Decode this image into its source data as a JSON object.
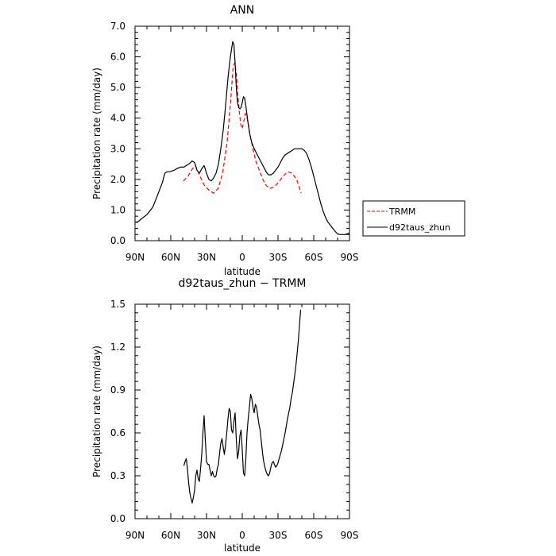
{
  "chart_data": [
    {
      "type": "line",
      "title": "ANN",
      "xlabel": "latitude",
      "ylabel": "Precipitation rate (mm/day)",
      "xlim": [
        90,
        -90
      ],
      "ylim": [
        0,
        7
      ],
      "xticks": [
        {
          "value": 90,
          "label": "90N"
        },
        {
          "value": 60,
          "label": "60N"
        },
        {
          "value": 30,
          "label": "30N"
        },
        {
          "value": 0,
          "label": "0"
        },
        {
          "value": -30,
          "label": "30S"
        },
        {
          "value": -60,
          "label": "60S"
        },
        {
          "value": -90,
          "label": "90S"
        }
      ],
      "yticks": [
        {
          "value": 0,
          "label": "0.0"
        },
        {
          "value": 1,
          "label": "1.0"
        },
        {
          "value": 2,
          "label": "2.0"
        },
        {
          "value": 3,
          "label": "3.0"
        },
        {
          "value": 4,
          "label": "4.0"
        },
        {
          "value": 5,
          "label": "5.0"
        },
        {
          "value": 6,
          "label": "6.0"
        },
        {
          "value": 7,
          "label": "7.0"
        }
      ],
      "legend": "right",
      "series": [
        {
          "name": "TRMM",
          "color": "#ff0000",
          "dash": true,
          "x": [
            49.4,
            45.6,
            41.8,
            39.3,
            35.5,
            31.7,
            27.9,
            24.1,
            20.3,
            16.5,
            12.7,
            10.1,
            7.6,
            6.3,
            5.1,
            3.8,
            2.5,
            1.3,
            0,
            -1.3,
            -2.5,
            -3.8,
            -5.1,
            -6.3,
            -8.9,
            -11.4,
            -15.2,
            -19,
            -22.8,
            -26.6,
            -30.4,
            -34.2,
            -38,
            -41.8,
            -45.6,
            -49.4
          ],
          "y": [
            1.95,
            2.1,
            2.35,
            2.45,
            2.1,
            1.8,
            1.65,
            1.55,
            1.7,
            2.2,
            3.2,
            4.4,
            5.7,
            5.8,
            5.5,
            4.8,
            4.2,
            3.8,
            3.65,
            3.9,
            4.15,
            4.05,
            3.8,
            3.5,
            3.0,
            2.6,
            2.2,
            1.85,
            1.7,
            1.75,
            1.9,
            2.1,
            2.25,
            2.2,
            2.0,
            1.55
          ]
        },
        {
          "name": "d92taus_zhun",
          "color": "#000000",
          "dash": false,
          "x": [
            90,
            87.5,
            85,
            80,
            75,
            70,
            67,
            65,
            63,
            61,
            57,
            55,
            52,
            49,
            45,
            42,
            40,
            38,
            36,
            34,
            32,
            30,
            28,
            26,
            24,
            22,
            20,
            18,
            16,
            14,
            12,
            10,
            8,
            7,
            6,
            5,
            4,
            3,
            2,
            1,
            0,
            -1,
            -2,
            -3,
            -4,
            -5,
            -6,
            -7,
            -8,
            -10,
            -12,
            -14,
            -16,
            -18,
            -20,
            -22,
            -24,
            -26,
            -28,
            -30,
            -32,
            -34,
            -36,
            -38,
            -40,
            -42,
            -44,
            -46,
            -48,
            -50,
            -52,
            -54,
            -56,
            -58,
            -60,
            -62,
            -64,
            -66,
            -68,
            -70,
            -72,
            -75,
            -78,
            -80,
            -82,
            -84,
            -86,
            -88,
            -90
          ],
          "y": [
            0.6,
            0.62,
            0.7,
            0.85,
            1.1,
            1.6,
            1.9,
            2.2,
            2.25,
            2.25,
            2.3,
            2.35,
            2.4,
            2.4,
            2.5,
            2.6,
            2.55,
            2.3,
            2.2,
            2.35,
            2.45,
            2.2,
            2.0,
            1.95,
            2.05,
            2.2,
            2.5,
            3.0,
            3.6,
            4.4,
            5.3,
            6.0,
            6.5,
            6.4,
            5.8,
            5.0,
            4.5,
            4.35,
            4.3,
            4.35,
            4.5,
            4.7,
            4.65,
            4.4,
            4.1,
            3.8,
            3.55,
            3.35,
            3.2,
            3.0,
            2.85,
            2.7,
            2.55,
            2.4,
            2.25,
            2.15,
            2.15,
            2.2,
            2.3,
            2.4,
            2.55,
            2.7,
            2.8,
            2.85,
            2.9,
            2.95,
            3.0,
            3.0,
            3.0,
            3.0,
            2.95,
            2.85,
            2.65,
            2.4,
            2.1,
            1.8,
            1.5,
            1.2,
            0.95,
            0.75,
            0.6,
            0.45,
            0.3,
            0.22,
            0.2,
            0.2,
            0.2,
            0.22,
            0.25
          ]
        }
      ]
    },
    {
      "type": "line",
      "title": "d92taus_zhun − TRMM",
      "xlabel": "latitude",
      "ylabel": "Precipitation rate (mm/day)",
      "xlim": [
        90,
        -90
      ],
      "ylim": [
        0,
        1.5
      ],
      "xticks": [
        {
          "value": 90,
          "label": "90N"
        },
        {
          "value": 60,
          "label": "60N"
        },
        {
          "value": 30,
          "label": "30N"
        },
        {
          "value": 0,
          "label": "0"
        },
        {
          "value": -30,
          "label": "30S"
        },
        {
          "value": -60,
          "label": "60S"
        },
        {
          "value": -90,
          "label": "90S"
        }
      ],
      "yticks": [
        {
          "value": 0,
          "label": "0.0"
        },
        {
          "value": 0.3,
          "label": "0.3"
        },
        {
          "value": 0.6,
          "label": "0.6"
        },
        {
          "value": 0.9,
          "label": "0.9"
        },
        {
          "value": 1.2,
          "label": "1.2"
        },
        {
          "value": 1.5,
          "label": "1.5"
        }
      ],
      "series": [
        {
          "color": "#000000",
          "dash": false,
          "x": [
            49,
            48,
            47,
            46,
            45,
            44,
            43,
            42,
            41,
            40,
            39,
            38,
            37,
            36,
            35,
            34,
            33,
            32,
            31,
            30,
            29,
            28,
            27,
            26,
            25,
            24,
            23,
            22,
            21,
            20,
            19,
            18,
            17,
            16,
            15,
            14,
            13,
            12,
            11,
            10,
            9,
            8,
            7,
            6,
            5,
            4,
            3,
            2,
            1,
            0,
            -1,
            -2,
            -3,
            -4,
            -5,
            -6,
            -7,
            -8,
            -9,
            -10,
            -11,
            -12,
            -13,
            -14,
            -15,
            -16,
            -17,
            -18,
            -19,
            -20,
            -21,
            -22,
            -23,
            -24,
            -25,
            -26,
            -27,
            -28,
            -29,
            -30,
            -31,
            -32,
            -33,
            -34,
            -35,
            -36,
            -37,
            -38,
            -39,
            -40,
            -41,
            -42,
            -43,
            -44,
            -45,
            -46,
            -47,
            -48,
            -49
          ],
          "y": [
            0.37,
            0.4,
            0.42,
            0.35,
            0.25,
            0.18,
            0.14,
            0.11,
            0.15,
            0.2,
            0.3,
            0.34,
            0.28,
            0.26,
            0.35,
            0.45,
            0.6,
            0.72,
            0.55,
            0.4,
            0.38,
            0.38,
            0.34,
            0.3,
            0.33,
            0.3,
            0.29,
            0.3,
            0.35,
            0.38,
            0.46,
            0.53,
            0.56,
            0.5,
            0.45,
            0.52,
            0.6,
            0.7,
            0.77,
            0.75,
            0.62,
            0.6,
            0.68,
            0.74,
            0.55,
            0.42,
            0.47,
            0.58,
            0.62,
            0.48,
            0.32,
            0.3,
            0.42,
            0.6,
            0.7,
            0.78,
            0.87,
            0.84,
            0.78,
            0.74,
            0.8,
            0.78,
            0.72,
            0.66,
            0.62,
            0.54,
            0.46,
            0.4,
            0.36,
            0.33,
            0.31,
            0.3,
            0.32,
            0.36,
            0.39,
            0.4,
            0.38,
            0.36,
            0.37,
            0.39,
            0.42,
            0.45,
            0.48,
            0.52,
            0.56,
            0.6,
            0.65,
            0.7,
            0.74,
            0.78,
            0.84,
            0.88,
            0.94,
            1.0,
            1.07,
            1.15,
            1.24,
            1.35,
            1.46
          ]
        }
      ]
    }
  ]
}
